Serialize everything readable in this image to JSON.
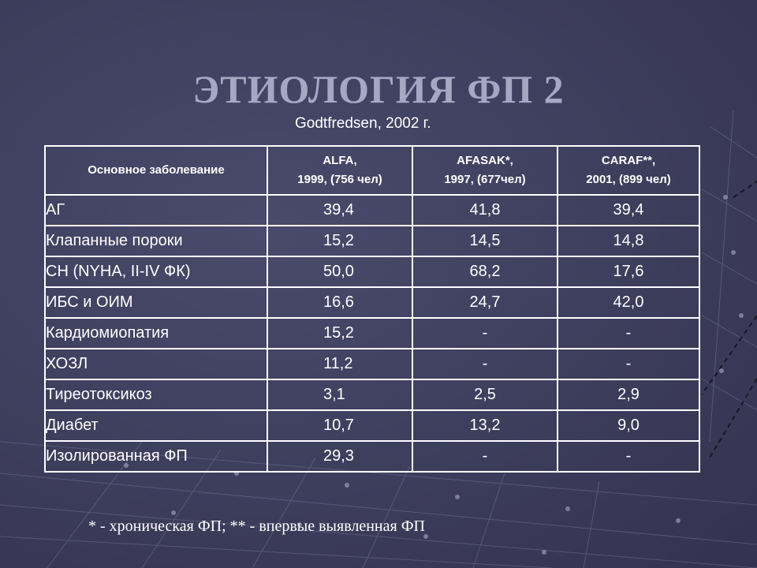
{
  "title": "ЭТИОЛОГИЯ ФП 2",
  "subtitle": "Godtfredsen, 2002 г.",
  "table": {
    "headers": [
      {
        "line1": "Основное заболевание",
        "line2": ""
      },
      {
        "line1": "ALFA,",
        "line2": "1999, (756 чел)"
      },
      {
        "line1": "AFASAK*,",
        "line2": "1997, (677чел)"
      },
      {
        "line1": "CARAF**,",
        "line2": "2001, (899 чел)"
      }
    ],
    "rows": [
      {
        "name": "АГ",
        "alfa": "39,4",
        "afasak": "41,8",
        "caraf": "39,4"
      },
      {
        "name": "Клапанные пороки",
        "alfa": "15,2",
        "afasak": "14,5",
        "caraf": "14,8"
      },
      {
        "name": "СН (NYHA, II-IV ФК)",
        "alfa": "50,0",
        "afasak": "68,2",
        "caraf": "17,6"
      },
      {
        "name": "ИБС и ОИМ",
        "alfa": "16,6",
        "afasak": "24,7",
        "caraf": "42,0"
      },
      {
        "name": "Кардиомиопатия",
        "alfa": "15,2",
        "afasak": "-",
        "caraf": "-"
      },
      {
        "name": "ХОЗЛ",
        "alfa": "11,2",
        "afasak": "-",
        "caraf": "-"
      },
      {
        "name": "Тиреотоксикоз",
        "alfa": "3,1",
        "afasak": "2,5",
        "caraf": "2,9"
      },
      {
        "name": "Диабет",
        "alfa": "10,7",
        "afasak": "13,2",
        "caraf": "9,0"
      },
      {
        "name": "Изолированная ФП",
        "alfa": "29,3",
        "afasak": "-",
        "caraf": "-"
      }
    ]
  },
  "footnote": "* - хроническая ФП;  ** - впервые выявленная ФП",
  "colors": {
    "background": "#3d3d5c",
    "title": "#a7a7c4",
    "text": "#ffffff"
  }
}
